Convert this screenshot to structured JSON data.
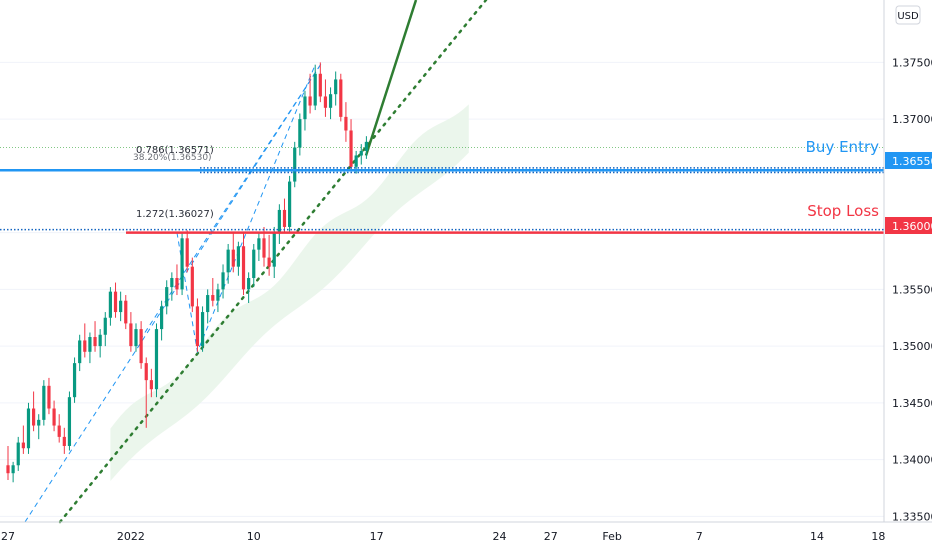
{
  "chart_data": {
    "type": "candlestick",
    "currency": "USD",
    "ylim": [
      1.3345,
      1.3805
    ],
    "colors": {
      "up": "#089981",
      "down": "#f23645",
      "cloud": "#e8f5e9",
      "buy": "#2196f3",
      "stop": "#f23645",
      "trend": "#2e7d32",
      "grid": "#e0e3eb"
    },
    "x_ticks": [
      "27",
      "2022",
      "10",
      "17",
      "24",
      "27",
      "Feb",
      "7",
      "14",
      "18"
    ],
    "x_tick_index": [
      0,
      24,
      48,
      72,
      96,
      106,
      118,
      135,
      158,
      170
    ],
    "y_ticks": [
      "1.37500",
      "1.37000",
      "1.36550",
      "1.36000",
      "1.35500",
      "1.35000",
      "1.34500",
      "1.34000",
      "1.33500"
    ],
    "y_tick_values": [
      1.375,
      1.37,
      1.3655,
      1.36,
      1.355,
      1.35,
      1.345,
      1.34,
      1.335
    ],
    "levels": {
      "buy_entry": {
        "label": "Buy Entry",
        "value": 1.3655,
        "tag": "1.36550"
      },
      "stop_loss": {
        "label": "Stop Loss",
        "value": 1.36,
        "tag": "1.36000"
      }
    },
    "fib_labels": [
      {
        "text": "0.786(1.36571)",
        "value": 1.36571
      },
      {
        "text": "38.20%(1.36530)",
        "value": 1.3653
      },
      {
        "text": "1.272(1.36027)",
        "value": 1.36027
      }
    ],
    "candles": [
      [
        1.3395,
        1.3412,
        1.3382,
        1.3388
      ],
      [
        1.3388,
        1.3398,
        1.338,
        1.3395
      ],
      [
        1.3395,
        1.342,
        1.339,
        1.3415
      ],
      [
        1.3415,
        1.343,
        1.3405,
        1.341
      ],
      [
        1.341,
        1.345,
        1.3405,
        1.3445
      ],
      [
        1.3445,
        1.346,
        1.3425,
        1.343
      ],
      [
        1.343,
        1.344,
        1.3418,
        1.3435
      ],
      [
        1.3435,
        1.347,
        1.343,
        1.3465
      ],
      [
        1.3465,
        1.3472,
        1.344,
        1.3445
      ],
      [
        1.3445,
        1.3452,
        1.3425,
        1.343
      ],
      [
        1.343,
        1.344,
        1.3415,
        1.342
      ],
      [
        1.342,
        1.3428,
        1.3405,
        1.3412
      ],
      [
        1.3412,
        1.346,
        1.3408,
        1.3455
      ],
      [
        1.3455,
        1.349,
        1.345,
        1.3485
      ],
      [
        1.3485,
        1.351,
        1.3478,
        1.3505
      ],
      [
        1.3505,
        1.352,
        1.349,
        1.3495
      ],
      [
        1.3495,
        1.3512,
        1.3485,
        1.3508
      ],
      [
        1.3508,
        1.3522,
        1.3495,
        1.35
      ],
      [
        1.35,
        1.3515,
        1.349,
        1.351
      ],
      [
        1.351,
        1.353,
        1.35,
        1.3525
      ],
      [
        1.3525,
        1.3552,
        1.3518,
        1.3548
      ],
      [
        1.3548,
        1.3556,
        1.3525,
        1.353
      ],
      [
        1.353,
        1.3548,
        1.3522,
        1.354
      ],
      [
        1.354,
        1.3545,
        1.3515,
        1.352
      ],
      [
        1.352,
        1.353,
        1.3495,
        1.35
      ],
      [
        1.35,
        1.352,
        1.3495,
        1.3515
      ],
      [
        1.3515,
        1.3522,
        1.348,
        1.3485
      ],
      [
        1.3485,
        1.349,
        1.3428,
        1.347
      ],
      [
        1.347,
        1.348,
        1.3455,
        1.3462
      ],
      [
        1.3462,
        1.352,
        1.3455,
        1.3515
      ],
      [
        1.3515,
        1.354,
        1.3505,
        1.3535
      ],
      [
        1.3535,
        1.3558,
        1.3528,
        1.3552
      ],
      [
        1.3552,
        1.3565,
        1.354,
        1.356
      ],
      [
        1.356,
        1.3572,
        1.3545,
        1.355
      ],
      [
        1.355,
        1.36,
        1.3545,
        1.3595
      ],
      [
        1.3595,
        1.3602,
        1.3565,
        1.357
      ],
      [
        1.357,
        1.3578,
        1.353,
        1.3535
      ],
      [
        1.3535,
        1.3542,
        1.3495,
        1.35
      ],
      [
        1.35,
        1.3535,
        1.3495,
        1.353
      ],
      [
        1.353,
        1.355,
        1.352,
        1.3545
      ],
      [
        1.3545,
        1.356,
        1.3535,
        1.354
      ],
      [
        1.354,
        1.3555,
        1.353,
        1.355
      ],
      [
        1.355,
        1.3572,
        1.3542,
        1.3565
      ],
      [
        1.3565,
        1.359,
        1.3555,
        1.3585
      ],
      [
        1.3585,
        1.36,
        1.3565,
        1.357
      ],
      [
        1.357,
        1.3592,
        1.3562,
        1.3588
      ],
      [
        1.3588,
        1.36,
        1.3545,
        1.355
      ],
      [
        1.355,
        1.3565,
        1.3538,
        1.356
      ],
      [
        1.356,
        1.359,
        1.3552,
        1.3585
      ],
      [
        1.3585,
        1.36,
        1.3575,
        1.3595
      ],
      [
        1.3595,
        1.3605,
        1.357,
        1.3578
      ],
      [
        1.3578,
        1.3598,
        1.3562,
        1.357
      ],
      [
        1.357,
        1.3605,
        1.356,
        1.36
      ],
      [
        1.36,
        1.3625,
        1.359,
        1.362
      ],
      [
        1.362,
        1.363,
        1.36,
        1.3605
      ],
      [
        1.3605,
        1.365,
        1.36,
        1.3645
      ],
      [
        1.3645,
        1.368,
        1.364,
        1.3675
      ],
      [
        1.3675,
        1.3705,
        1.3668,
        1.37
      ],
      [
        1.37,
        1.3725,
        1.369,
        1.372
      ],
      [
        1.372,
        1.374,
        1.3705,
        1.3712
      ],
      [
        1.3712,
        1.3748,
        1.3708,
        1.374
      ],
      [
        1.374,
        1.375,
        1.3715,
        1.372
      ],
      [
        1.372,
        1.3735,
        1.3702,
        1.371
      ],
      [
        1.371,
        1.3728,
        1.37,
        1.3722
      ],
      [
        1.3722,
        1.3742,
        1.3712,
        1.3735
      ],
      [
        1.3735,
        1.374,
        1.3698,
        1.3702
      ],
      [
        1.3702,
        1.3715,
        1.368,
        1.369
      ],
      [
        1.369,
        1.37,
        1.3655,
        1.3658
      ],
      [
        1.3658,
        1.3672,
        1.3652,
        1.3668
      ],
      [
        1.3668,
        1.3678,
        1.366,
        1.3672
      ],
      [
        1.3672,
        1.3685,
        1.3665,
        1.368
      ]
    ]
  }
}
